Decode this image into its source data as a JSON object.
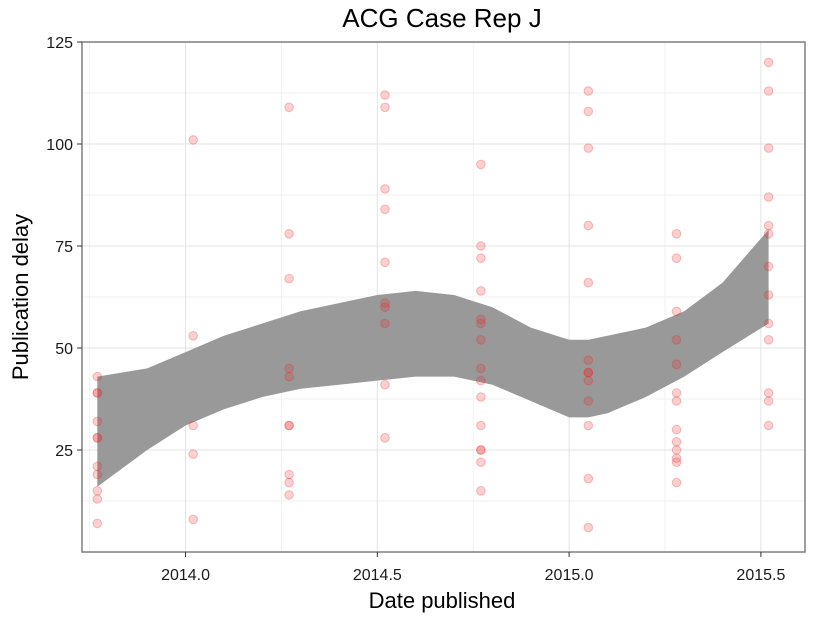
{
  "chart_data": {
    "type": "scatter",
    "title": "ACG Case Rep J",
    "xlabel": "Date published",
    "ylabel": "Publication delay",
    "xlim": [
      13.73,
      15.615
    ],
    "ylim": [
      0,
      125
    ],
    "x_ticks": [
      14.0,
      14.5,
      15.0,
      15.5
    ],
    "x_tick_labels": [
      "2014.0",
      "2014.5",
      "2015.0",
      "2015.5"
    ],
    "y_ticks": [
      25,
      50,
      75,
      100,
      125
    ],
    "y_tick_labels": [
      "25",
      "50",
      "75",
      "100",
      "125"
    ],
    "grid": true,
    "point_color": "#e8282b",
    "band_color": "#999999",
    "series": [
      {
        "x": [
          13.77,
          13.77,
          13.77,
          13.77,
          13.77,
          13.77,
          13.77,
          13.77,
          13.77,
          13.77,
          13.77,
          14.02,
          14.02,
          14.02,
          14.02,
          14.02,
          14.27,
          14.27,
          14.27,
          14.27,
          14.27,
          14.27,
          14.27,
          14.27,
          14.27,
          14.27,
          14.52,
          14.52,
          14.52,
          14.52,
          14.52,
          14.52,
          14.52,
          14.52,
          14.52,
          14.52,
          14.77,
          14.77,
          14.77,
          14.77,
          14.77,
          14.77,
          14.77,
          14.77,
          14.77,
          14.77,
          14.77,
          14.77,
          14.77,
          14.77,
          14.77,
          15.05,
          15.05,
          15.05,
          15.05,
          15.05,
          15.05,
          15.05,
          15.05,
          15.05,
          15.05,
          15.05,
          15.05,
          15.05,
          15.28,
          15.28,
          15.28,
          15.28,
          15.28,
          15.28,
          15.28,
          15.28,
          15.28,
          15.28,
          15.28,
          15.28,
          15.28,
          15.52,
          15.52,
          15.52,
          15.52,
          15.52,
          15.52,
          15.52,
          15.52,
          15.52,
          15.52,
          15.52,
          15.52,
          15.52
        ],
        "y": [
          43,
          39,
          32,
          28,
          21,
          19,
          15,
          13,
          7,
          28,
          39,
          101,
          53,
          31,
          24,
          8,
          109,
          78,
          67,
          45,
          43,
          31,
          19,
          17,
          14,
          31,
          112,
          109,
          89,
          84,
          71,
          61,
          60,
          56,
          41,
          28,
          95,
          75,
          72,
          64,
          57,
          56,
          52,
          45,
          42,
          38,
          31,
          25,
          22,
          15,
          25,
          113,
          108,
          99,
          80,
          66,
          47,
          44,
          42,
          37,
          31,
          18,
          6,
          44,
          78,
          72,
          59,
          52,
          46,
          39,
          37,
          30,
          27,
          25,
          23,
          22,
          17,
          120,
          113,
          99,
          87,
          80,
          78,
          70,
          63,
          56,
          52,
          39,
          37,
          31
        ]
      }
    ],
    "smooth_band": {
      "x": [
        13.77,
        13.9,
        14.0,
        14.1,
        14.2,
        14.3,
        14.4,
        14.5,
        14.6,
        14.7,
        14.8,
        14.9,
        15.0,
        15.05,
        15.1,
        15.2,
        15.3,
        15.4,
        15.52
      ],
      "upper": [
        43,
        45,
        49,
        53,
        56,
        59,
        61,
        63,
        64,
        63,
        60,
        55,
        52,
        52,
        53,
        55,
        59,
        66,
        79
      ],
      "lower": [
        16,
        25,
        31,
        35,
        38,
        40,
        41,
        42,
        43,
        43,
        41,
        37,
        33,
        33,
        34,
        38,
        43,
        49,
        56
      ]
    }
  }
}
